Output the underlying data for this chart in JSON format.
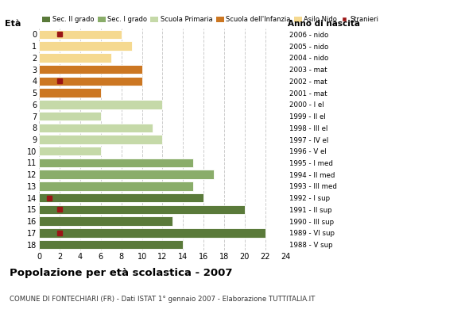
{
  "ages": [
    0,
    1,
    2,
    3,
    4,
    5,
    6,
    7,
    8,
    9,
    10,
    11,
    12,
    13,
    14,
    15,
    16,
    17,
    18
  ],
  "values": [
    8,
    9,
    7,
    10,
    10,
    6,
    12,
    6,
    11,
    12,
    6,
    15,
    17,
    15,
    16,
    20,
    13,
    22,
    14
  ],
  "stranieri_vals": [
    2,
    0,
    0,
    0,
    2,
    0,
    0,
    0,
    0,
    0,
    0,
    0,
    0,
    0,
    1,
    2,
    0,
    2,
    0
  ],
  "right_labels": [
    "2006 - nido",
    "2005 - nido",
    "2004 - nido",
    "2003 - mat",
    "2002 - mat",
    "2001 - mat",
    "2000 - I el",
    "1999 - II el",
    "1998 - III el",
    "1997 - IV el",
    "1996 - V el",
    "1995 - I med",
    "1994 - II med",
    "1993 - III med",
    "1992 - I sup",
    "1991 - II sup",
    "1990 - III sup",
    "1989 - VI sup",
    "1988 - V sup"
  ],
  "bar_colors": [
    "#f5d990",
    "#f5d990",
    "#f5d990",
    "#cc7722",
    "#cc7722",
    "#cc7722",
    "#c5d9a8",
    "#c5d9a8",
    "#c5d9a8",
    "#c5d9a8",
    "#c5d9a8",
    "#8aad6a",
    "#8aad6a",
    "#8aad6a",
    "#5a7a3a",
    "#5a7a3a",
    "#5a7a3a",
    "#5a7a3a",
    "#5a7a3a"
  ],
  "legend_labels": [
    "Sec. II grado",
    "Sec. I grado",
    "Scuola Primaria",
    "Scuola dell'Infanzia",
    "Asilo Nido",
    "Stranieri"
  ],
  "legend_colors": [
    "#5a7a3a",
    "#8aad6a",
    "#c5d9a8",
    "#cc7722",
    "#f5d990",
    "#9b1515"
  ],
  "title": "Popolazione per età scolastica - 2007",
  "subtitle": "COMUNE DI FONTECHIARI (FR) - Dati ISTAT 1° gennaio 2007 - Elaborazione TUTTITALIA.IT",
  "eta_label": "Età",
  "anno_label": "Anno di nascita",
  "stranieri_color": "#9b1515",
  "grid_color": "#cccccc",
  "bg_color": "#ffffff",
  "xlim": [
    0,
    24
  ],
  "xticks": [
    0,
    2,
    4,
    6,
    8,
    10,
    12,
    14,
    16,
    18,
    20,
    22,
    24
  ]
}
